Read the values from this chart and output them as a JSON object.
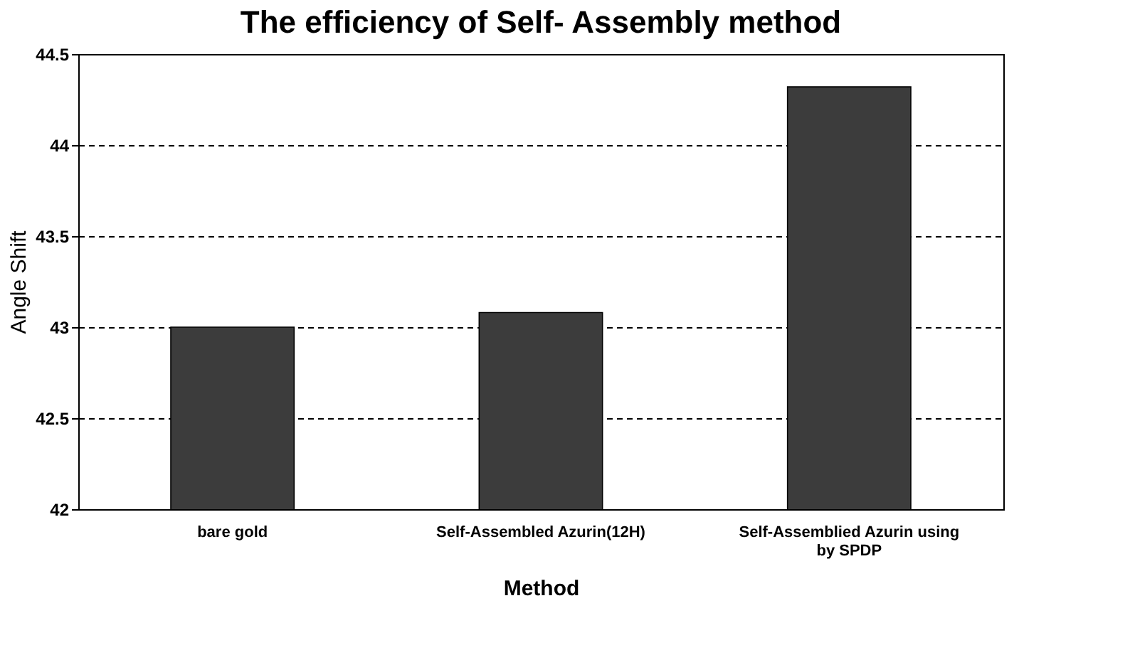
{
  "chart_data": {
    "type": "bar",
    "title": "The efficiency of Self- Assembly method",
    "xlabel": "Method",
    "ylabel": "Angle Shift",
    "categories": [
      "bare gold",
      "Self-Assembled Azurin(12H)",
      "Self-Assemblied Azurin using by SPDP"
    ],
    "values": [
      43.0,
      43.08,
      44.32
    ],
    "color": "#3c3c3c",
    "ylim": [
      42,
      44.5
    ],
    "yticks": [
      42,
      42.5,
      43,
      43.5,
      44,
      44.5
    ],
    "grid": "y",
    "line_style": "dashed"
  }
}
